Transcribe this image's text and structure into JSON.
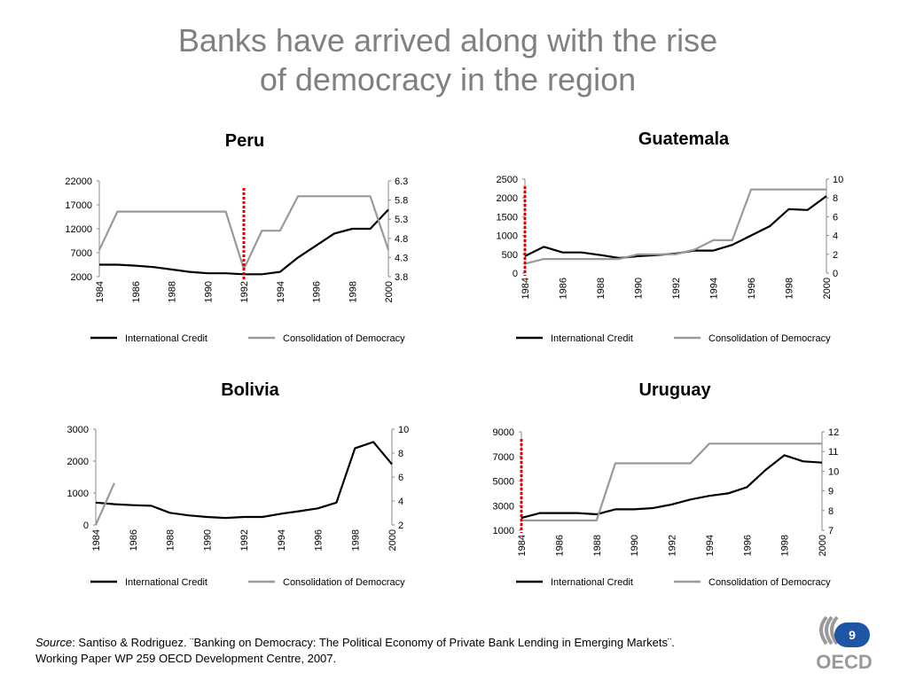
{
  "title_line1": "Banks have arrived along with the rise",
  "title_line2": "of democracy in the region",
  "legend": {
    "series1": "International Credit",
    "series2": "Consolidation of Democracy"
  },
  "source": {
    "label": "Source",
    "text": ": Santiso & Rodriguez. ¨Banking on Democracy: The Political Economy of Private Bank Lending in Emerging Markets¨.",
    "line2": "Working Paper WP 259 OECD Development Centre, 2007."
  },
  "page_number": "9",
  "logo_text": "OECD",
  "colors": {
    "credit": "#000000",
    "democracy": "#999999",
    "marker": "#e00000",
    "badge": "#1f55a5"
  },
  "chart_data": [
    {
      "id": "peru",
      "type": "line",
      "title": "Peru",
      "x": [
        1984,
        1985,
        1986,
        1987,
        1988,
        1989,
        1990,
        1991,
        1992,
        1993,
        1994,
        1995,
        1996,
        1997,
        1998,
        1999,
        2000
      ],
      "xticks": [
        "1984",
        "1986",
        "1988",
        "1990",
        "1992",
        "1994",
        "1996",
        "1998",
        "2000"
      ],
      "y_left": {
        "range": [
          2000,
          22000
        ],
        "ticks": [
          "22000",
          "17000",
          "12000",
          "7000",
          "2000"
        ]
      },
      "y_right": {
        "range": [
          3.8,
          6.3
        ],
        "ticks": [
          "6.3",
          "5.8",
          "5.3",
          "4.8",
          "4.3",
          "3.8"
        ]
      },
      "marker_year": 1992,
      "series": [
        {
          "name": "International Credit",
          "axis": "left",
          "values": [
            4500,
            4500,
            4300,
            4000,
            3500,
            3000,
            2700,
            2700,
            2500,
            2500,
            3000,
            6000,
            8500,
            11000,
            12000,
            12000,
            16000
          ]
        },
        {
          "name": "Consolidation of Democracy",
          "axis": "right",
          "values": [
            4.5,
            5.5,
            5.5,
            5.5,
            5.5,
            5.5,
            5.5,
            5.5,
            4.0,
            5.0,
            5.0,
            5.9,
            5.9,
            5.9,
            5.9,
            5.9,
            4.5
          ]
        }
      ]
    },
    {
      "id": "guatemala",
      "type": "line",
      "title": "Guatemala",
      "x": [
        1984,
        1985,
        1986,
        1987,
        1988,
        1989,
        1990,
        1991,
        1992,
        1993,
        1994,
        1995,
        1996,
        1997,
        1998,
        1999,
        2000
      ],
      "xticks": [
        "1984",
        "1986",
        "1988",
        "1990",
        "1992",
        "1994",
        "1996",
        "1998",
        "2000"
      ],
      "y_left": {
        "range": [
          0,
          2500
        ],
        "ticks": [
          "2500",
          "2000",
          "1500",
          "1000",
          "500",
          "0"
        ]
      },
      "y_right": {
        "range": [
          0,
          10
        ],
        "ticks": [
          "10",
          "8",
          "6",
          "4",
          "2",
          "0"
        ]
      },
      "marker_year": 1984,
      "series": [
        {
          "name": "International Credit",
          "axis": "left",
          "values": [
            450,
            700,
            550,
            550,
            480,
            400,
            450,
            480,
            520,
            600,
            600,
            750,
            1000,
            1250,
            1700,
            1680,
            2050
          ]
        },
        {
          "name": "Consolidation of Democracy",
          "axis": "right",
          "values": [
            1,
            1.5,
            1.5,
            1.5,
            1.5,
            1.5,
            2,
            2,
            2,
            2.5,
            3.5,
            3.5,
            8.9,
            8.9,
            8.9,
            8.9,
            8.9
          ]
        }
      ]
    },
    {
      "id": "bolivia",
      "type": "line",
      "title": "Bolivia",
      "x": [
        1984,
        1985,
        1986,
        1987,
        1988,
        1989,
        1990,
        1991,
        1992,
        1993,
        1994,
        1995,
        1996,
        1997,
        1998,
        1999,
        2000
      ],
      "xticks": [
        "1984",
        "1986",
        "1988",
        "1990",
        "1992",
        "1994",
        "1996",
        "1998",
        "2000"
      ],
      "y_left": {
        "range": [
          0,
          3000
        ],
        "ticks": [
          "3000",
          "2000",
          "1000",
          "0"
        ]
      },
      "y_right": {
        "range": [
          2,
          10
        ],
        "ticks": [
          "10",
          "8",
          "6",
          "4",
          "2"
        ]
      },
      "marker_year": null,
      "series": [
        {
          "name": "International Credit",
          "axis": "left",
          "values": [
            700,
            650,
            620,
            600,
            380,
            300,
            250,
            220,
            250,
            250,
            350,
            430,
            520,
            700,
            2400,
            2600,
            1900
          ]
        },
        {
          "name": "Consolidation of Democracy",
          "axis": "right",
          "values": [
            2,
            5.5,
            null,
            null,
            null,
            null,
            null,
            null,
            null,
            null,
            null,
            null,
            null,
            null,
            null,
            null,
            null
          ]
        }
      ]
    },
    {
      "id": "uruguay",
      "type": "line",
      "title": "Uruguay",
      "x": [
        1984,
        1985,
        1986,
        1987,
        1988,
        1989,
        1990,
        1991,
        1992,
        1993,
        1994,
        1995,
        1996,
        1997,
        1998,
        1999,
        2000
      ],
      "xticks": [
        "1984",
        "1986",
        "1988",
        "1990",
        "1992",
        "1994",
        "1996",
        "1998",
        "2000"
      ],
      "y_left": {
        "range": [
          1000,
          9000
        ],
        "ticks": [
          "9000",
          "7000",
          "5000",
          "3000",
          "1000"
        ]
      },
      "y_right": {
        "range": [
          7,
          12
        ],
        "ticks": [
          "12",
          "11",
          "10",
          "9",
          "8",
          "7"
        ]
      },
      "marker_year": 1984,
      "series": [
        {
          "name": "International Credit",
          "axis": "left",
          "values": [
            2000,
            2400,
            2400,
            2400,
            2300,
            2700,
            2700,
            2800,
            3100,
            3500,
            3800,
            4000,
            4500,
            5900,
            7100,
            6600,
            6500
          ]
        },
        {
          "name": "Consolidation of Democracy",
          "axis": "right",
          "values": [
            7.5,
            7.5,
            7.5,
            7.5,
            7.5,
            10.4,
            10.4,
            10.4,
            10.4,
            10.4,
            11.4,
            11.4,
            11.4,
            11.4,
            11.4,
            11.4,
            11.4
          ]
        }
      ]
    }
  ]
}
